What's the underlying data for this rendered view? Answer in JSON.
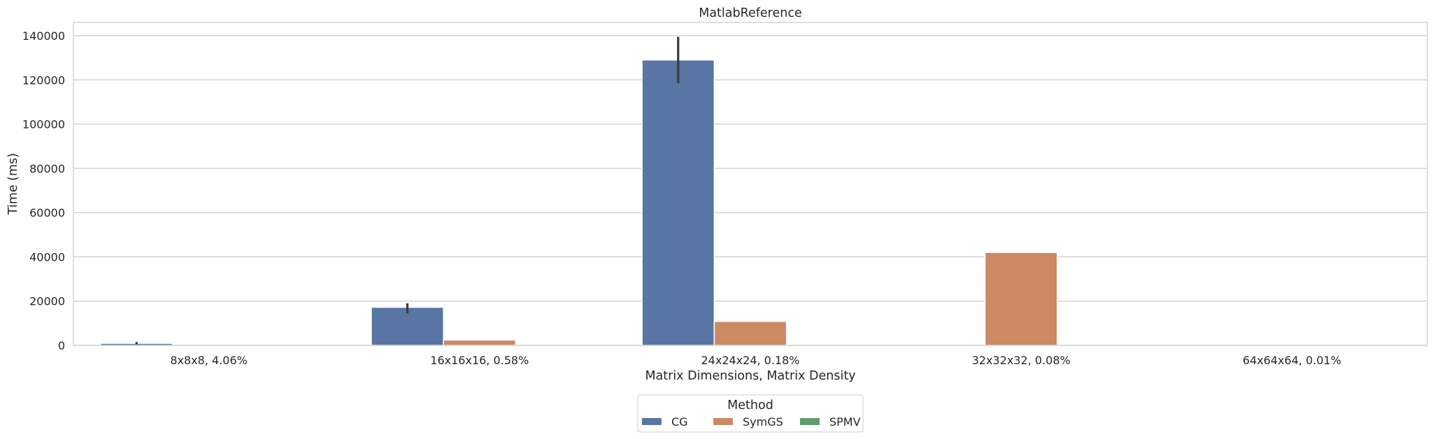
{
  "chart_data": {
    "type": "bar",
    "title": "MatlabReference",
    "xlabel": "Matrix Dimensions, Matrix Density",
    "ylabel": "Time (ms)",
    "ylim": [
      0,
      146000
    ],
    "yticks": [
      0,
      20000,
      40000,
      60000,
      80000,
      100000,
      120000,
      140000
    ],
    "grid": "horizontal",
    "categories": [
      "8x8x8, 4.06%",
      "16x16x16, 0.58%",
      "24x24x24, 0.18%",
      "32x32x32, 0.08%",
      "64x64x64, 0.01%"
    ],
    "series": [
      {
        "name": "CG",
        "color": "#5975a4",
        "values": [
          900,
          17200,
          129000,
          null,
          null
        ],
        "error_low": [
          500,
          14500,
          118500,
          null,
          null
        ],
        "error_high": [
          1500,
          19000,
          139500,
          null,
          null
        ]
      },
      {
        "name": "SymGS",
        "color": "#cc8963",
        "values": [
          null,
          2400,
          10800,
          42000,
          null
        ],
        "error_low": [
          null,
          null,
          null,
          null,
          null
        ],
        "error_high": [
          null,
          null,
          null,
          null,
          null
        ]
      },
      {
        "name": "SPMV",
        "color": "#5f9e6e",
        "values": [
          null,
          null,
          null,
          null,
          null
        ],
        "error_low": [
          null,
          null,
          null,
          null,
          null
        ],
        "error_high": [
          null,
          null,
          null,
          null,
          null
        ]
      }
    ],
    "legend": {
      "title": "Method",
      "placement": "bottom-center"
    }
  }
}
